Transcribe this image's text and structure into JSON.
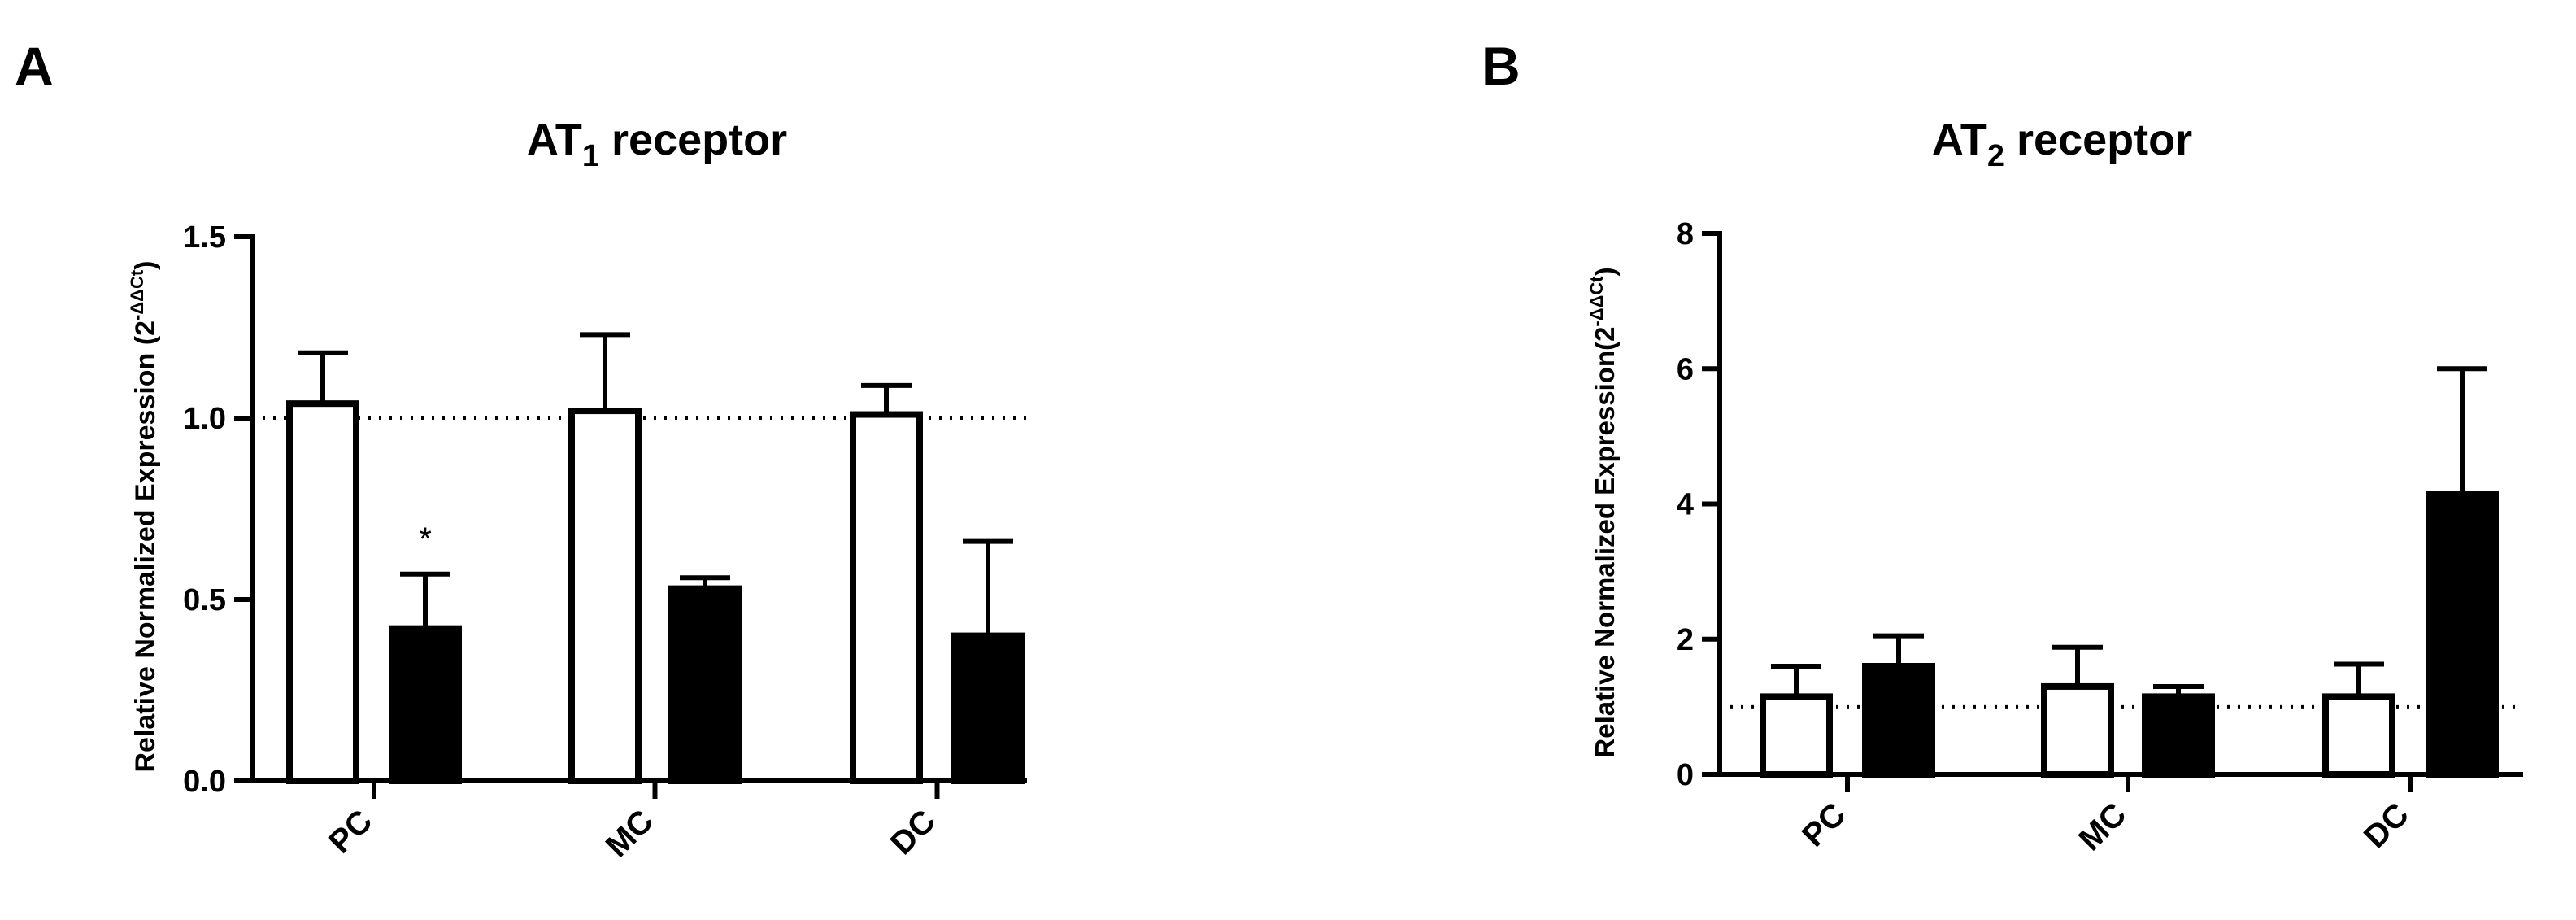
{
  "panels": [
    {
      "label": "A",
      "title": {
        "main": "AT",
        "sub": "1",
        "rest": " receptor"
      },
      "ylabel": {
        "main": "Relative Normalized Expression (2",
        "sup": "-ΔΔCt",
        "close": ")"
      }
    },
    {
      "label": "B",
      "title": {
        "main": "AT",
        "sub": "2",
        "rest": " receptor"
      },
      "ylabel": {
        "main": "Relative Normalized Expression(2",
        "sup": "-ΔΔCt",
        "close": ")"
      }
    }
  ],
  "chart_data": [
    {
      "type": "bar",
      "categories": [
        "PC",
        "MC",
        "DC"
      ],
      "series": [
        {
          "fill": "#ffffff",
          "values": [
            1.04,
            1.02,
            1.01
          ],
          "error": [
            0.14,
            0.21,
            0.08
          ]
        },
        {
          "fill": "#000000",
          "values": [
            0.42,
            0.53,
            0.4
          ],
          "error": [
            0.15,
            0.03,
            0.26
          ]
        }
      ],
      "ylim": [
        0,
        1.5
      ],
      "yticks": [
        "0.0",
        "0.5",
        "1.0",
        "1.5"
      ],
      "ytick_values": [
        0,
        0.5,
        1.0,
        1.5
      ],
      "reference_line": 1.0,
      "annotations": [
        {
          "text": "*",
          "category": "PC",
          "series": 1
        }
      ],
      "legend": "none",
      "grid": false
    },
    {
      "type": "bar",
      "categories": [
        "PC",
        "MC",
        "DC"
      ],
      "series": [
        {
          "fill": "#ffffff",
          "values": [
            1.15,
            1.3,
            1.15
          ],
          "error": [
            0.45,
            0.58,
            0.48
          ]
        },
        {
          "fill": "#000000",
          "values": [
            1.6,
            1.15,
            4.15
          ],
          "error": [
            0.45,
            0.15,
            1.85
          ]
        }
      ],
      "ylim": [
        0,
        8
      ],
      "yticks": [
        "0",
        "2",
        "4",
        "6",
        "8"
      ],
      "ytick_values": [
        0,
        2,
        4,
        6,
        8
      ],
      "reference_line": 1.0,
      "annotations": [],
      "legend": "none",
      "grid": false
    }
  ]
}
